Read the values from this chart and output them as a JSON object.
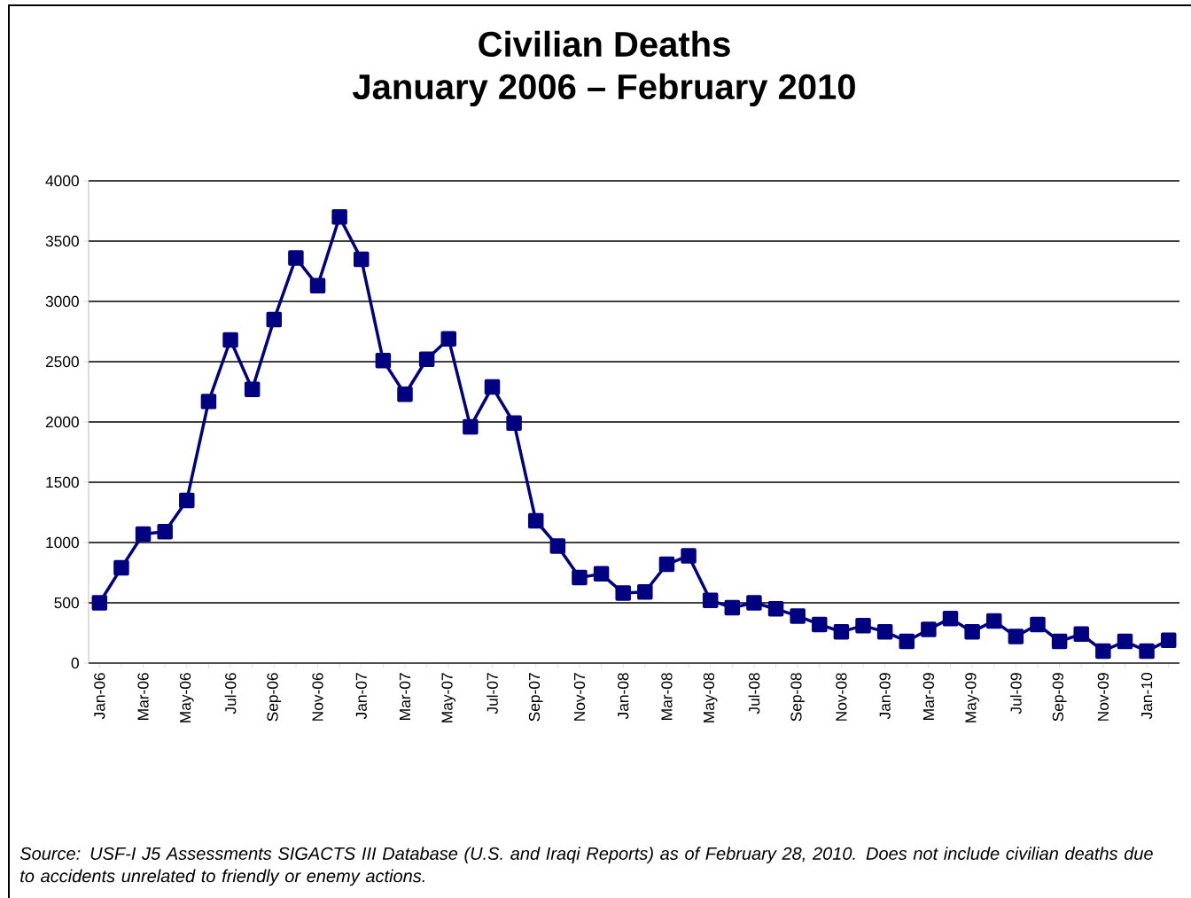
{
  "chart_data": {
    "type": "line",
    "title": "Civilian Deaths",
    "subtitle": "January 2006 – February 2010",
    "categories": [
      "Jan-06",
      null,
      "Mar-06",
      null,
      "May-06",
      null,
      "Jul-06",
      null,
      "Sep-06",
      null,
      "Nov-06",
      null,
      "Jan-07",
      null,
      "Mar-07",
      null,
      "May-07",
      null,
      "Jul-07",
      null,
      "Sep-07",
      null,
      "Nov-07",
      null,
      "Jan-08",
      null,
      "Mar-08",
      null,
      "May-08",
      null,
      "Jul-08",
      null,
      "Sep-08",
      null,
      "Nov-08",
      null,
      "Jan-09",
      null,
      "Mar-09",
      null,
      "May-09",
      null,
      "Jul-09",
      null,
      "Sep-09",
      null,
      "Nov-09",
      null,
      "Jan-10",
      null
    ],
    "series": [
      {
        "color": "#000080",
        "values": [
          500,
          790,
          1070,
          1090,
          1350,
          2170,
          2680,
          2270,
          2850,
          3360,
          3130,
          3700,
          3350,
          2510,
          2230,
          2520,
          2690,
          1960,
          2290,
          1990,
          1180,
          970,
          710,
          740,
          580,
          590,
          820,
          890,
          520,
          460,
          500,
          450,
          390,
          320,
          260,
          310,
          260,
          180,
          280,
          370,
          260,
          350,
          220,
          320,
          180,
          240,
          100,
          180,
          100,
          190
        ]
      }
    ],
    "ylim": [
      0,
      4000
    ],
    "yticks": [
      0,
      500,
      1000,
      1500,
      2000,
      2500,
      3000,
      3500,
      4000
    ],
    "grid": "y",
    "marker": "square",
    "line_style": "solid",
    "legend": false,
    "annotations": [
      "Source:  USF-I J5 Assessments SIGACTS III Database (U.S. and Iraqi Reports) as of February 28, 2010.  Does not include civilian deaths due to accidents unrelated to friendly or enemy actions."
    ]
  }
}
